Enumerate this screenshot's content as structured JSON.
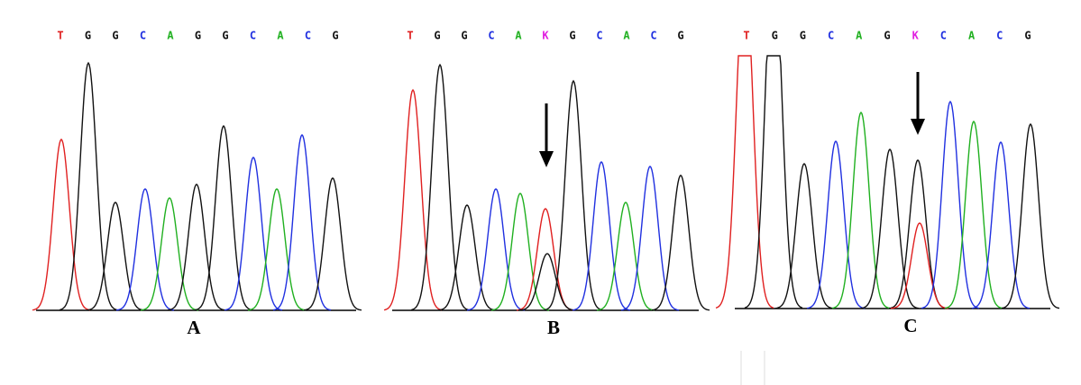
{
  "panels": [
    {
      "bases": [
        "T",
        "G",
        "G",
        "C",
        "A",
        "G",
        "G",
        "C",
        "A",
        "C",
        "G"
      ],
      "label": "A"
    },
    {
      "bases": [
        "T",
        "G",
        "G",
        "C",
        "A",
        "K",
        "G",
        "C",
        "A",
        "C",
        "G"
      ],
      "label": "B"
    },
    {
      "bases": [
        "T",
        "G",
        "G",
        "C",
        "A",
        "G",
        "K",
        "C",
        "A",
        "C",
        "G"
      ],
      "label": "C"
    }
  ]
}
